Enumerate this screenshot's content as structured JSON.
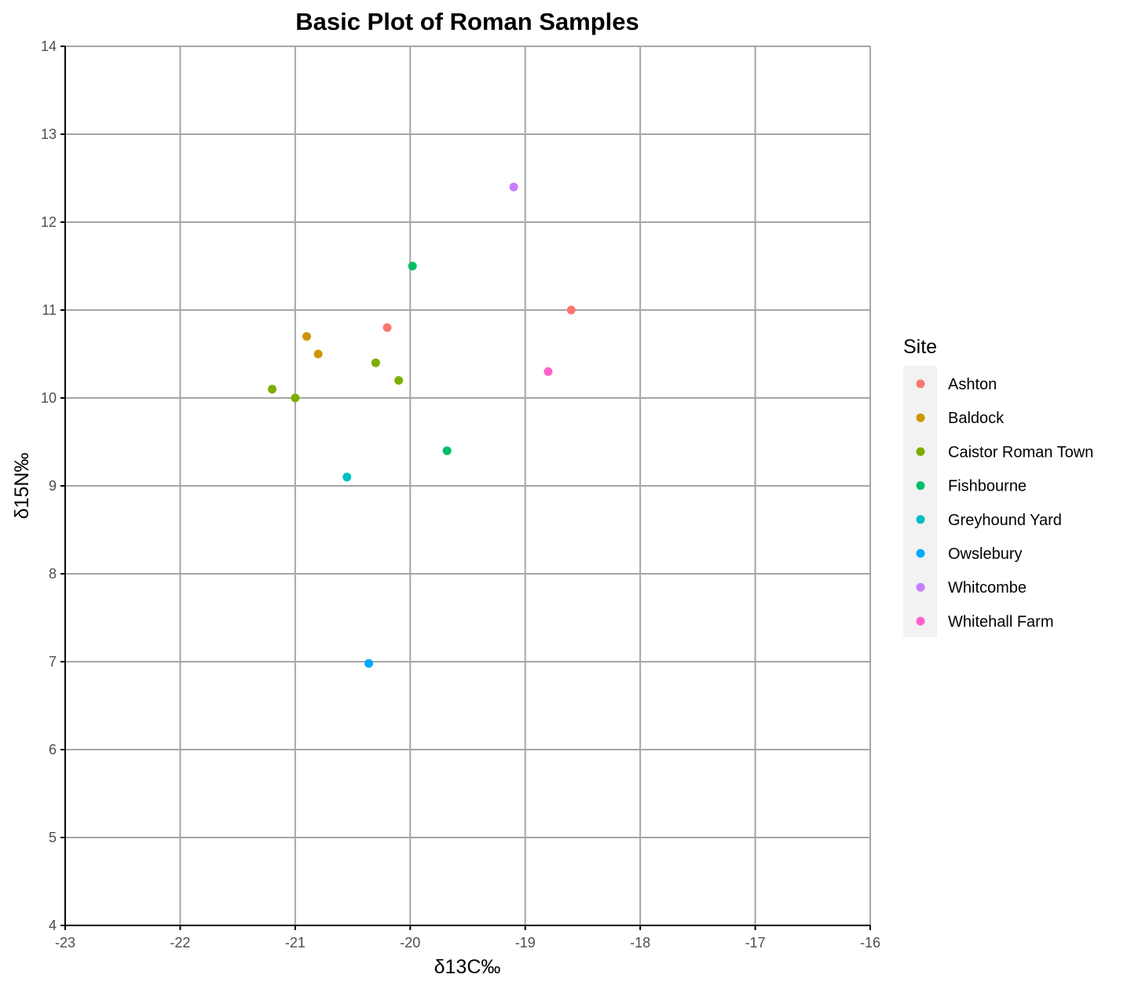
{
  "chart_data": {
    "type": "scatter",
    "title": "Basic Plot of Roman Samples",
    "xlabel": "δ13C‰",
    "ylabel": "δ15N‰",
    "xlim": [
      -23,
      -16
    ],
    "ylim": [
      4,
      14
    ],
    "xticks": [
      -23,
      -22,
      -21,
      -20,
      -19,
      -18,
      -17,
      -16
    ],
    "yticks": [
      4,
      5,
      6,
      7,
      8,
      9,
      10,
      11,
      12,
      13,
      14
    ],
    "grid": true,
    "legend": {
      "title": "Site",
      "position": "right"
    },
    "series": [
      {
        "name": "Ashton",
        "color": "#F8766D",
        "points": [
          [
            -20.2,
            10.8
          ],
          [
            -18.6,
            11.0
          ]
        ]
      },
      {
        "name": "Baldock",
        "color": "#CD9600",
        "points": [
          [
            -20.9,
            10.7
          ],
          [
            -20.8,
            10.5
          ]
        ]
      },
      {
        "name": "Caistor Roman Town",
        "color": "#7CAE00",
        "points": [
          [
            -21.2,
            10.1
          ],
          [
            -21.0,
            10.0
          ],
          [
            -20.3,
            10.4
          ],
          [
            -20.1,
            10.2
          ]
        ]
      },
      {
        "name": "Fishbourne",
        "color": "#00BE67",
        "points": [
          [
            -19.98,
            11.5
          ],
          [
            -19.68,
            9.4
          ]
        ]
      },
      {
        "name": "Greyhound Yard",
        "color": "#00BFC4",
        "points": [
          [
            -20.55,
            9.1
          ]
        ]
      },
      {
        "name": "Owslebury",
        "color": "#00A9FF",
        "points": [
          [
            -20.36,
            6.98
          ]
        ]
      },
      {
        "name": "Whitcombe",
        "color": "#C77CFF",
        "points": [
          [
            -19.1,
            12.4
          ]
        ]
      },
      {
        "name": "Whitehall Farm",
        "color": "#FF61CC",
        "points": [
          [
            -18.8,
            10.3
          ]
        ]
      }
    ]
  }
}
